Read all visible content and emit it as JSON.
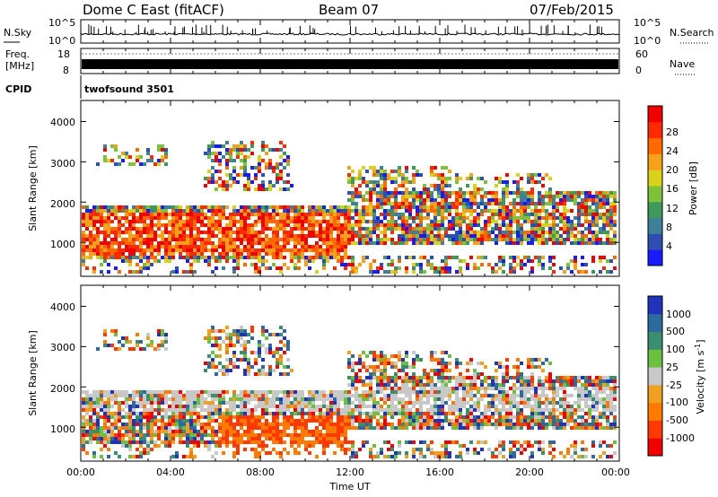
{
  "header": {
    "radar": "Dome C East (fitACF)",
    "beam": "Beam 07",
    "date": "07/Feb/2015"
  },
  "chart_data": [
    {
      "type": "line",
      "panel": "noise",
      "left_label": "N.Sky",
      "right_label": "N.Search",
      "left_ticks": [
        "10^5",
        "10^0"
      ],
      "right_ticks": [
        "10^5",
        "10^0"
      ]
    },
    {
      "type": "line",
      "panel": "frequency",
      "left_label_lines": [
        "Freq.",
        "[MHz]"
      ],
      "right_label": "Nave",
      "left_ticks": [
        "18",
        "8"
      ],
      "right_ticks": [
        "60",
        "0"
      ]
    },
    {
      "type": "table",
      "panel": "cpid",
      "label": "CPID",
      "value": "twofsound 3501"
    },
    {
      "type": "heatmap",
      "panel": "power",
      "ylabel": "Slant Range [km]",
      "y_ticks": [
        "4000",
        "3000",
        "2000",
        "1000"
      ],
      "ylim": [
        180,
        4500
      ],
      "colorbar_label": "Power [dB]",
      "colorbar_ticks": [
        "28",
        "24",
        "20",
        "16",
        "12",
        "8",
        "4"
      ],
      "colorbar_colors": [
        "#1a1aff",
        "#2e4fb0",
        "#3f7f9a",
        "#3e9a5a",
        "#7ec23a",
        "#d8d21c",
        "#f5a21a",
        "#ff6a00",
        "#ff2a00",
        "#f00000"
      ],
      "bands_km": [
        {
          "from": 500,
          "to": 2000,
          "note": "dense echoes 00:00-12:00, strongest near 1300 km"
        },
        {
          "from": 1000,
          "to": 2600,
          "note": "echoes 12:00-24:00"
        },
        {
          "from": 2800,
          "to": 3500,
          "note": "scattered high-range echoes"
        }
      ]
    },
    {
      "type": "heatmap",
      "panel": "velocity",
      "ylabel": "Slant Range [km]",
      "y_ticks": [
        "4000",
        "3000",
        "2000",
        "1000"
      ],
      "ylim": [
        180,
        4500
      ],
      "xlabel": "Time UT",
      "x_ticks": [
        "00:00",
        "04:00",
        "08:00",
        "12:00",
        "16:00",
        "20:00",
        "00:00"
      ],
      "xlim_hours": [
        0,
        24
      ],
      "colorbar_label": "Velocity [m s",
      "colorbar_label_sup": "-1",
      "colorbar_label_end": "]",
      "colorbar_ticks": [
        "1000",
        "500",
        "100",
        "25",
        "-25",
        "-100",
        "-500",
        "-1000"
      ],
      "colorbar_colors": [
        "#2233bb",
        "#2e6aa0",
        "#3a8f6e",
        "#6cc040",
        "#c8c8c8",
        "#f0a020",
        "#ff7a00",
        "#ff3a00",
        "#f00000"
      ]
    }
  ]
}
